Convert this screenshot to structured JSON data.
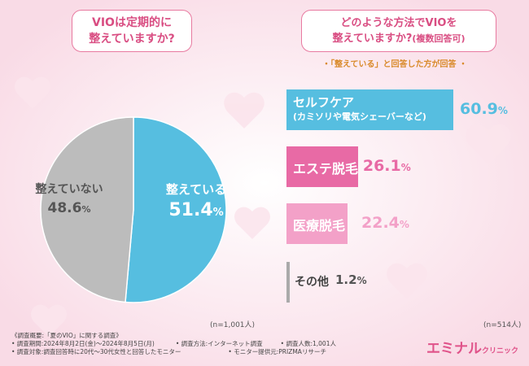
{
  "question1": [
    "VIOは定期的に",
    "整えていますか?"
  ],
  "question2": {
    "line1": "どのような方法でVIOを",
    "line2": "整えていますか?",
    "line2_small": "(複数回答可)"
  },
  "question2_note": "・「整えている」と回答した方が回答 ・",
  "n1": "(n=1,001人)",
  "n2": "(n=514人)",
  "chart_data": [
    {
      "type": "pie",
      "slices": [
        {
          "label": "整えている",
          "value": 51.4,
          "color": "#56bee0"
        },
        {
          "label": "整えていない",
          "value": 48.6,
          "color": "#bcbcbc"
        }
      ]
    },
    {
      "type": "bar",
      "categories": [
        {
          "line1": "セルフケア",
          "line2": "(カミソリや電気シェーバーなど)",
          "value": 60.9,
          "color": "#56bee0"
        },
        {
          "line1": "エステ脱毛",
          "line2": "",
          "value": 26.1,
          "color": "#e86aa5"
        },
        {
          "line1": "医療脱毛",
          "line2": "",
          "value": 22.4,
          "color": "#f3a1c8"
        },
        {
          "line1": "その他",
          "line2": "",
          "value": 1.2,
          "color": "#aaaaaa"
        }
      ],
      "unit": "%"
    }
  ],
  "footer": {
    "line1": "《調査概要:「夏のVIO」に関する調査》",
    "line2a": "• 調査期間:2024年8月2日(金)〜2024年8月5日(月)",
    "line2b": "• 調査方法:インターネット調査",
    "line2c": "• 調査人数:1,001人",
    "line3a": "• 調査対象:調査回答時に20代〜30代女性と回答したモニター",
    "line3b": "• モニター提供元:PRIZMAリサーチ"
  },
  "brand": {
    "main": "エミナル",
    "sub": "クリニック"
  }
}
